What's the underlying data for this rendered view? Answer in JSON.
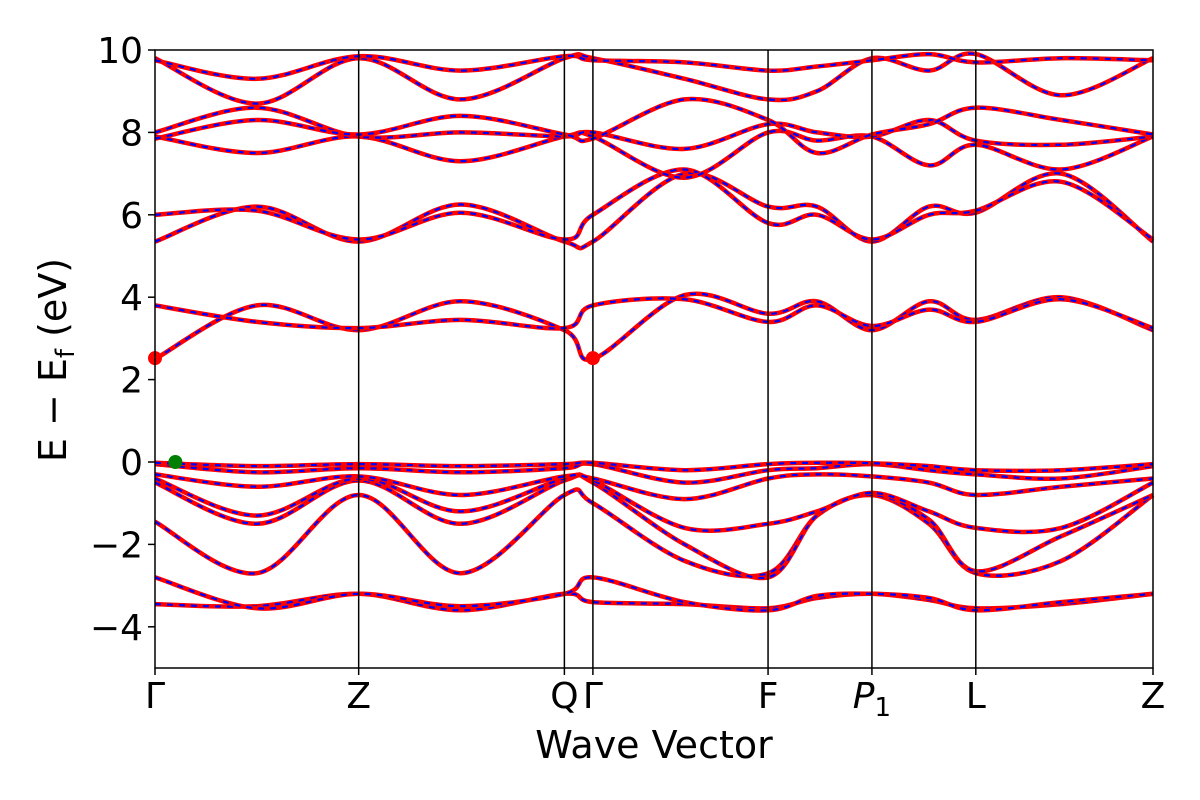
{
  "chart_data": {
    "type": "line",
    "title": "",
    "xlabel": "Wave Vector",
    "ylabel_parts": {
      "prefix": "E − E",
      "subscript": "f",
      "suffix": " (eV)"
    },
    "ylim": [
      -5,
      10
    ],
    "yticks": [
      -4,
      -2,
      0,
      2,
      4,
      6,
      8,
      10
    ],
    "ytick_labels": [
      "−4",
      "−2",
      "0",
      "2",
      "4",
      "6",
      "8",
      "10"
    ],
    "xlim": [
      0,
      4.9
    ],
    "high_symmetry_points": [
      {
        "label": "Γ",
        "x": 0.0
      },
      {
        "label": "Z",
        "x": 1.0
      },
      {
        "label": "Q",
        "x": 2.01
      },
      {
        "label": "Γ",
        "x": 2.15
      },
      {
        "label": "F",
        "x": 3.01
      },
      {
        "label": "P",
        "sub": "1",
        "italic": true,
        "x": 3.52
      },
      {
        "label": "L",
        "x": 4.03
      },
      {
        "label": "Z",
        "x": 4.9
      }
    ],
    "grid": false,
    "legend": "none",
    "colors": {
      "band_solid": "#ff0000",
      "band_dashed": "#0000ff",
      "cbm_marker": "#ff0000",
      "vbm_marker": "#008000",
      "frame": "#000000"
    },
    "series": [
      {
        "x": [
          0,
          0.5,
          1.0,
          1.5,
          2.01,
          2.15,
          2.6,
          3.01,
          3.25,
          3.52,
          3.8,
          4.03,
          4.45,
          4.9
        ],
        "y": [
          -3.45,
          -3.5,
          -3.2,
          -3.6,
          -3.2,
          -3.4,
          -3.45,
          -3.55,
          -3.3,
          -3.2,
          -3.35,
          -3.55,
          -3.45,
          -3.2
        ]
      },
      {
        "x": [
          0,
          0.5,
          1.0,
          1.5,
          2.01,
          2.15,
          2.6,
          3.01,
          3.25,
          3.52,
          3.8,
          4.03,
          4.45,
          4.9
        ],
        "y": [
          -2.8,
          -3.55,
          -3.2,
          -3.5,
          -3.2,
          -2.8,
          -3.4,
          -3.6,
          -3.25,
          -3.2,
          -3.3,
          -3.6,
          -3.4,
          -3.2
        ]
      },
      {
        "x": [
          0,
          0.5,
          1.0,
          1.5,
          2.01,
          2.15,
          2.6,
          3.01,
          3.25,
          3.52,
          3.8,
          4.03,
          4.45,
          4.9
        ],
        "y": [
          -1.45,
          -2.7,
          -0.8,
          -2.7,
          -0.8,
          -1.0,
          -2.4,
          -2.7,
          -1.3,
          -0.8,
          -1.5,
          -2.7,
          -2.4,
          -0.8
        ]
      },
      {
        "x": [
          0,
          0.5,
          1.0,
          1.5,
          2.01,
          2.15,
          2.6,
          3.01,
          3.25,
          3.52,
          3.8,
          4.03,
          4.45,
          4.9
        ],
        "y": [
          -0.5,
          -1.5,
          -0.45,
          -1.5,
          -0.45,
          -0.5,
          -2.0,
          -2.8,
          -1.3,
          -0.8,
          -1.4,
          -2.65,
          -1.8,
          -0.8
        ]
      },
      {
        "x": [
          0,
          0.5,
          1.0,
          1.5,
          2.01,
          2.15,
          2.6,
          3.01,
          3.25,
          3.52,
          3.8,
          4.03,
          4.45,
          4.9
        ],
        "y": [
          -0.4,
          -1.3,
          -0.4,
          -1.2,
          -0.4,
          -0.45,
          -1.6,
          -1.5,
          -1.2,
          -0.75,
          -1.2,
          -1.6,
          -1.6,
          -0.5
        ]
      },
      {
        "x": [
          0,
          0.5,
          1.0,
          1.5,
          2.01,
          2.15,
          2.6,
          3.01,
          3.25,
          3.52,
          3.8,
          4.03,
          4.45,
          4.9
        ],
        "y": [
          -0.3,
          -0.6,
          -0.35,
          -0.8,
          -0.35,
          -0.4,
          -0.9,
          -0.4,
          -0.3,
          -0.35,
          -0.5,
          -0.8,
          -0.6,
          -0.4
        ]
      },
      {
        "x": [
          0,
          0.5,
          1.0,
          1.5,
          2.01,
          2.15,
          2.6,
          3.01,
          3.25,
          3.52,
          3.8,
          4.03,
          4.45,
          4.9
        ],
        "y": [
          -0.05,
          -0.25,
          -0.15,
          -0.25,
          -0.15,
          -0.05,
          -0.5,
          -0.2,
          -0.15,
          -0.05,
          -0.2,
          -0.3,
          -0.4,
          -0.1
        ]
      },
      {
        "x": [
          0,
          0.5,
          1.0,
          1.5,
          2.01,
          2.15,
          2.6,
          3.01,
          3.25,
          3.52,
          3.8,
          4.03,
          4.45,
          4.9
        ],
        "y": [
          -0.02,
          -0.1,
          -0.05,
          -0.1,
          -0.05,
          -0.02,
          -0.2,
          -0.05,
          -0.02,
          -0.03,
          -0.1,
          -0.2,
          -0.2,
          -0.05
        ]
      },
      {
        "x": [
          0,
          0.5,
          1.0,
          1.5,
          2.01,
          2.15,
          2.6,
          3.01,
          3.25,
          3.52,
          3.8,
          4.03,
          4.45,
          4.9
        ],
        "y": [
          2.5,
          3.8,
          3.2,
          3.9,
          3.2,
          2.5,
          4.05,
          3.6,
          3.9,
          3.2,
          3.9,
          3.45,
          4.0,
          3.2
        ]
      },
      {
        "x": [
          0,
          0.5,
          1.0,
          1.5,
          2.01,
          2.15,
          2.6,
          3.01,
          3.25,
          3.52,
          3.8,
          4.03,
          4.45,
          4.9
        ],
        "y": [
          3.8,
          3.4,
          3.25,
          3.45,
          3.25,
          3.8,
          3.95,
          3.4,
          3.8,
          3.3,
          3.7,
          3.4,
          3.95,
          3.25
        ]
      },
      {
        "x": [
          0,
          0.5,
          1.0,
          1.5,
          2.01,
          2.15,
          2.6,
          3.01,
          3.25,
          3.52,
          3.8,
          4.03,
          4.45,
          4.9
        ],
        "y": [
          5.35,
          6.2,
          5.35,
          6.25,
          5.35,
          5.35,
          7.0,
          6.2,
          6.2,
          5.35,
          6.2,
          6.05,
          7.0,
          5.35
        ]
      },
      {
        "x": [
          0,
          0.5,
          1.0,
          1.5,
          2.01,
          2.15,
          2.6,
          3.01,
          3.25,
          3.52,
          3.8,
          4.03,
          4.45,
          4.9
        ],
        "y": [
          6.0,
          6.1,
          5.4,
          6.05,
          5.4,
          6.0,
          7.1,
          5.8,
          6.0,
          5.4,
          6.0,
          6.1,
          6.8,
          5.4
        ]
      },
      {
        "x": [
          0,
          0.5,
          1.0,
          1.5,
          2.01,
          2.15,
          2.6,
          3.01,
          3.25,
          3.52,
          3.8,
          4.03,
          4.45,
          4.9
        ],
        "y": [
          7.9,
          7.5,
          7.9,
          7.3,
          7.9,
          7.9,
          6.9,
          8.0,
          7.8,
          7.9,
          7.2,
          7.7,
          7.1,
          7.9
        ]
      },
      {
        "x": [
          0,
          0.5,
          1.0,
          1.5,
          2.01,
          2.15,
          2.6,
          3.01,
          3.25,
          3.52,
          3.8,
          4.03,
          4.45,
          4.9
        ],
        "y": [
          8.0,
          8.6,
          7.9,
          8.0,
          7.9,
          8.0,
          7.6,
          8.2,
          8.0,
          7.9,
          8.3,
          7.8,
          7.7,
          7.9
        ]
      },
      {
        "x": [
          0,
          0.5,
          1.0,
          1.5,
          2.01,
          2.15,
          2.6,
          3.01,
          3.25,
          3.52,
          3.8,
          4.03,
          4.45,
          4.9
        ],
        "y": [
          7.85,
          8.3,
          7.95,
          8.4,
          7.95,
          7.85,
          8.8,
          8.3,
          7.5,
          7.95,
          8.2,
          8.6,
          8.3,
          7.95
        ]
      },
      {
        "x": [
          0,
          0.5,
          1.0,
          1.5,
          2.01,
          2.15,
          2.6,
          3.01,
          3.25,
          3.52,
          3.8,
          4.03,
          4.45,
          4.9
        ],
        "y": [
          9.8,
          8.7,
          9.8,
          8.8,
          9.8,
          9.8,
          9.3,
          8.8,
          9.0,
          9.8,
          9.5,
          9.9,
          8.9,
          9.8
        ]
      },
      {
        "x": [
          0,
          0.5,
          1.0,
          1.5,
          2.01,
          2.15,
          2.6,
          3.01,
          3.25,
          3.52,
          3.8,
          4.03,
          4.45,
          4.9
        ],
        "y": [
          9.75,
          9.3,
          9.85,
          9.5,
          9.85,
          9.75,
          9.7,
          9.5,
          9.6,
          9.75,
          9.9,
          9.7,
          9.8,
          9.75
        ]
      }
    ],
    "markers": [
      {
        "name": "cbm",
        "x": [
          0.0,
          2.15
        ],
        "y": [
          2.52,
          2.52
        ],
        "color": "red"
      },
      {
        "name": "vbm",
        "x": [
          0.1
        ],
        "y": [
          0.0
        ],
        "color": "green"
      }
    ]
  }
}
